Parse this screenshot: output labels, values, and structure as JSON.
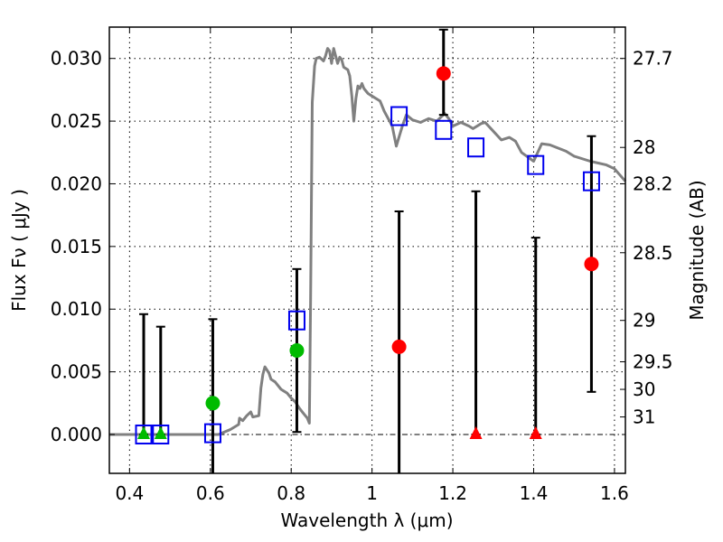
{
  "chart_data": {
    "type": "scatter",
    "title": "",
    "xlabel": "Wavelength  λ (μm)",
    "ylabel": "Flux  Fν  ( μJy )",
    "ylabel_right": "Magnitude (AB)",
    "xlim": [
      0.35,
      1.627
    ],
    "ylim": [
      -0.0031,
      0.0325
    ],
    "grid": true,
    "x_ticks": [
      0.4,
      0.6,
      0.8,
      1.0,
      1.2,
      1.4,
      1.6
    ],
    "x_tick_labels": [
      "0.4",
      "0.6",
      "0.8",
      "1",
      "1.2",
      "1.4",
      "1.6"
    ],
    "y_ticks": [
      0.0,
      0.005,
      0.01,
      0.015,
      0.02,
      0.025,
      0.03
    ],
    "y_tick_labels": [
      "0.000",
      "0.005",
      "0.010",
      "0.015",
      "0.020",
      "0.025",
      "0.030"
    ],
    "right_ticks": [
      {
        "label": "27.7",
        "flux": 0.03
      },
      {
        "label": "28",
        "flux": 0.0229
      },
      {
        "label": "28.2",
        "flux": 0.02
      },
      {
        "label": "28.5",
        "flux": 0.0145
      },
      {
        "label": "29",
        "flux": 0.0091
      },
      {
        "label": "29.5",
        "flux": 0.0058
      },
      {
        "label": "30",
        "flux": 0.0036
      },
      {
        "label": "31",
        "flux": 0.0014
      }
    ],
    "zero_line": 0.0,
    "colors": {
      "model": "#808080",
      "model_points": "#0000ee",
      "detection_optical": "#00bb00",
      "detection_nir": "#ff0000",
      "errorbar": "#000000",
      "grid": "#000000"
    },
    "series": [
      {
        "name": "model-spectrum",
        "type": "line",
        "x": [
          0.35,
          0.55,
          0.62,
          0.65,
          0.67,
          0.672,
          0.68,
          0.69,
          0.7,
          0.705,
          0.72,
          0.725,
          0.73,
          0.735,
          0.745,
          0.75,
          0.76,
          0.775,
          0.79,
          0.8,
          0.81,
          0.82,
          0.83,
          0.84,
          0.845,
          0.848,
          0.852,
          0.858,
          0.862,
          0.87,
          0.88,
          0.885,
          0.89,
          0.895,
          0.9,
          0.905,
          0.91,
          0.915,
          0.92,
          0.925,
          0.93,
          0.94,
          0.945,
          0.95,
          0.955,
          0.96,
          0.965,
          0.97,
          0.975,
          0.98,
          0.99,
          1.0,
          1.02,
          1.03,
          1.05,
          1.06,
          1.075,
          1.085,
          1.1,
          1.12,
          1.14,
          1.16,
          1.18,
          1.19,
          1.2,
          1.22,
          1.24,
          1.25,
          1.27,
          1.28,
          1.3,
          1.32,
          1.34,
          1.355,
          1.37,
          1.4,
          1.42,
          1.44,
          1.48,
          1.5,
          1.54,
          1.58,
          1.6,
          1.627
        ],
        "y": [
          0.0,
          0.0,
          0.0,
          0.0004,
          0.0008,
          0.0013,
          0.0011,
          0.0015,
          0.0018,
          0.0014,
          0.0015,
          0.0037,
          0.0048,
          0.0054,
          0.0049,
          0.0044,
          0.0042,
          0.0036,
          0.0033,
          0.0029,
          0.0026,
          0.0021,
          0.0017,
          0.0013,
          0.0009,
          0.011,
          0.0265,
          0.0294,
          0.03,
          0.0301,
          0.0298,
          0.0302,
          0.0308,
          0.0306,
          0.0296,
          0.0308,
          0.0302,
          0.0296,
          0.0301,
          0.0299,
          0.0293,
          0.0291,
          0.0286,
          0.027,
          0.025,
          0.0268,
          0.0278,
          0.0276,
          0.028,
          0.0276,
          0.0272,
          0.027,
          0.0266,
          0.0258,
          0.0246,
          0.023,
          0.0246,
          0.0255,
          0.0251,
          0.0249,
          0.0252,
          0.025,
          0.0256,
          0.0252,
          0.0246,
          0.0249,
          0.0246,
          0.0244,
          0.0248,
          0.0249,
          0.0242,
          0.0235,
          0.0237,
          0.0234,
          0.0225,
          0.0218,
          0.0232,
          0.0231,
          0.0226,
          0.0222,
          0.0218,
          0.0215,
          0.0212,
          0.0202
        ]
      },
      {
        "name": "model-photometry",
        "type": "scatter",
        "marker": "open-square",
        "x": [
          0.435,
          0.477,
          0.606,
          0.814,
          1.067,
          1.177,
          1.257,
          1.405,
          1.543
        ],
        "y": [
          0.0,
          0.0,
          0.0001,
          0.0091,
          0.0254,
          0.0243,
          0.0229,
          0.0215,
          0.0202
        ]
      },
      {
        "name": "optical-detections",
        "type": "scatter",
        "marker": "circle",
        "color": "#00bb00",
        "x": [
          0.606,
          0.814
        ],
        "y": [
          0.0025,
          0.0067
        ]
      },
      {
        "name": "optical-upper-limits",
        "type": "scatter",
        "marker": "triangle",
        "color": "#00bb00",
        "x": [
          0.435,
          0.477
        ],
        "y": [
          0.0,
          0.0
        ]
      },
      {
        "name": "nir-detections",
        "type": "scatter",
        "marker": "circle",
        "color": "#ff0000",
        "x": [
          1.067,
          1.177,
          1.543
        ],
        "y": [
          0.007,
          0.0288,
          0.0136
        ]
      },
      {
        "name": "nir-upper-limits",
        "type": "scatter",
        "marker": "triangle",
        "color": "#ff0000",
        "x": [
          1.257,
          1.405
        ],
        "y": [
          0.0,
          0.0
        ]
      }
    ],
    "errorbars": [
      {
        "x": 0.435,
        "low": 0.0,
        "high": 0.0096
      },
      {
        "x": 0.477,
        "low": 0.0,
        "high": 0.0086
      },
      {
        "x": 0.606,
        "low": -0.0031,
        "high": 0.0092
      },
      {
        "x": 0.814,
        "low": 0.0002,
        "high": 0.0132
      },
      {
        "x": 1.067,
        "low": -0.0031,
        "high": 0.0178
      },
      {
        "x": 1.177,
        "low": 0.0255,
        "high": 0.0323
      },
      {
        "x": 1.257,
        "low": 0.0,
        "high": 0.0194
      },
      {
        "x": 1.405,
        "low": 0.0,
        "high": 0.0157
      },
      {
        "x": 1.543,
        "low": 0.0034,
        "high": 0.0238
      }
    ]
  }
}
